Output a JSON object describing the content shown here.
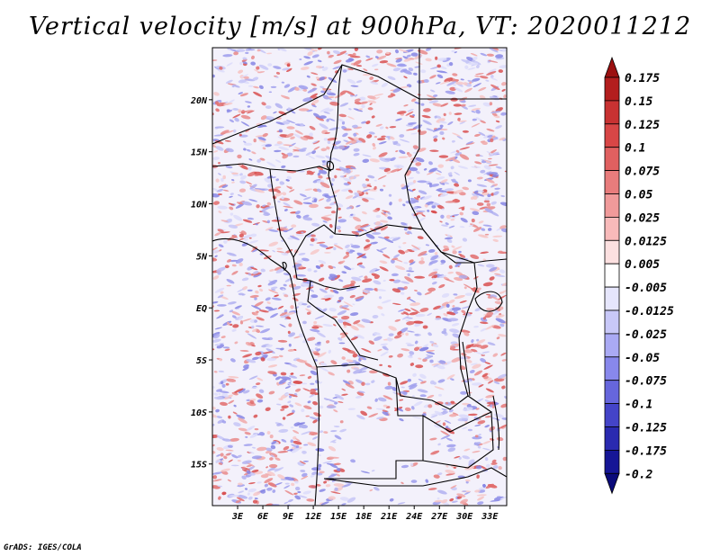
{
  "title": "Vertical velocity [m/s] at 900hPa, VT: 2020011212",
  "credit": "GrADS: IGES/COLA",
  "map": {
    "lon_range": [
      0,
      35
    ],
    "lat_range": [
      -19,
      25
    ],
    "lon_ticks": [
      "3E",
      "6E",
      "9E",
      "12E",
      "15E",
      "18E",
      "21E",
      "24E",
      "27E",
      "30E",
      "33E"
    ],
    "lon_tick_values": [
      3,
      6,
      9,
      12,
      15,
      18,
      21,
      24,
      27,
      30,
      33
    ],
    "lat_ticks": [
      "20N",
      "15N",
      "10N",
      "5N",
      "EQ",
      "5S",
      "10S",
      "15S"
    ],
    "lat_tick_values": [
      20,
      15,
      10,
      5,
      0,
      -5,
      -10,
      -15
    ]
  },
  "colorbar": {
    "labels": [
      "0.175",
      "0.15",
      "0.125",
      "0.1",
      "0.075",
      "0.05",
      "0.025",
      "0.0125",
      "0.005",
      "-0.005",
      "-0.0125",
      "-0.025",
      "-0.05",
      "-0.075",
      "-0.1",
      "-0.125",
      "-0.175",
      "-0.2"
    ],
    "colors": [
      "#9b1010",
      "#b31e1e",
      "#c83232",
      "#d84646",
      "#e06060",
      "#e87c7c",
      "#f09a9a",
      "#f8baba",
      "#fce0e0",
      "#ffffff",
      "#e6e6fc",
      "#c8c8f8",
      "#aaaaf4",
      "#8888ec",
      "#6666dc",
      "#4444c8",
      "#2a2ab0",
      "#161696",
      "#0a0a7a"
    ]
  },
  "colors": {
    "positive": "#e05050",
    "negative": "#5a5ae6",
    "border": "#000000"
  }
}
